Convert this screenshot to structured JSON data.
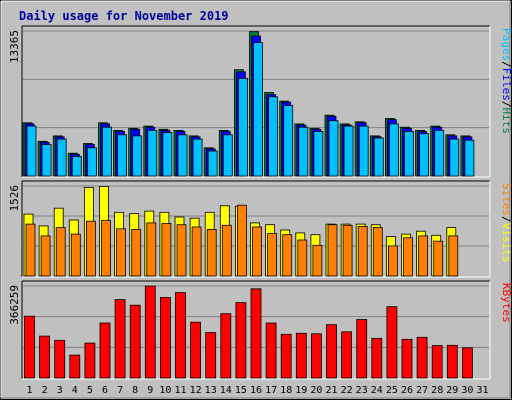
{
  "chart_data": {
    "type": "bar",
    "title": "Daily usage for November 2019",
    "categories": [
      "1",
      "2",
      "3",
      "4",
      "5",
      "6",
      "7",
      "8",
      "9",
      "10",
      "11",
      "12",
      "13",
      "14",
      "15",
      "16",
      "17",
      "18",
      "19",
      "20",
      "21",
      "22",
      "23",
      "24",
      "25",
      "26",
      "27",
      "28",
      "29",
      "30",
      "31"
    ],
    "weekend_days": [
      "2",
      "3",
      "9",
      "16",
      "23",
      "24",
      "30",
      "31"
    ],
    "panels": [
      {
        "id": "hits-files-pages",
        "max_label": "13365",
        "ymax": 13365,
        "labels": [
          {
            "text": "Pages",
            "color": "#00c0ff"
          },
          {
            "text": "/",
            "color": "#000000"
          },
          {
            "text": "Files",
            "color": "#0000ff"
          },
          {
            "text": "/",
            "color": "#000000"
          },
          {
            "text": "Hits",
            "color": "#008040"
          }
        ],
        "series": [
          {
            "name": "Hits",
            "color": "#008040",
            "values": [
              4900,
              3200,
              3700,
              2100,
              3000,
              4900,
              4200,
              4400,
              4600,
              4300,
              4200,
              3700,
              2600,
              4200,
              9800,
              13300,
              7700,
              6900,
              4800,
              4400,
              5600,
              4800,
              5000,
              3700,
              5300,
              4500,
              4200,
              4600,
              3800,
              3700,
              0
            ]
          },
          {
            "name": "Files",
            "color": "#0000ff",
            "values": [
              4800,
              3100,
              3600,
              2000,
              2900,
              4800,
              4100,
              4300,
              4500,
              4200,
              4100,
              3600,
              2500,
              4100,
              9600,
              12900,
              7500,
              6800,
              4700,
              4300,
              5500,
              4700,
              4900,
              3600,
              5200,
              4400,
              4100,
              4500,
              3700,
              3600,
              0
            ]
          },
          {
            "name": "Pages",
            "color": "#00c0ff",
            "values": [
              4600,
              2900,
              3400,
              1800,
              2600,
              4500,
              3800,
              3700,
              4200,
              4000,
              3800,
              3400,
              2300,
              3800,
              9000,
              12300,
              7300,
              6500,
              4500,
              4100,
              5100,
              4600,
              4600,
              3500,
              4800,
              4100,
              3900,
              4200,
              3400,
              3300,
              0
            ]
          }
        ]
      },
      {
        "id": "visits-sites",
        "max_label": "1526",
        "ymax": 1526,
        "labels": [
          {
            "text": "Sites",
            "color": "#ff8000"
          },
          {
            "text": "/",
            "color": "#000000"
          },
          {
            "text": "Visits",
            "color": "#ffff00"
          }
        ],
        "series": [
          {
            "name": "Visits",
            "color": "#ffff00",
            "values": [
              1050,
              850,
              1150,
              950,
              1500,
              1520,
              1080,
              1060,
              1100,
              1080,
              1000,
              980,
              1080,
              1190,
              1180,
              900,
              870,
              780,
              730,
              700,
              880,
              880,
              880,
              870,
              670,
              710,
              760,
              690,
              820,
              0,
              0
            ]
          },
          {
            "name": "Sites",
            "color": "#ff8000",
            "values": [
              880,
              680,
              820,
              710,
              930,
              940,
              800,
              790,
              900,
              890,
              870,
              830,
              790,
              860,
              1200,
              830,
              720,
              700,
              610,
              520,
              870,
              860,
              840,
              820,
              510,
              650,
              680,
              590,
              680,
              0,
              0
            ]
          }
        ]
      },
      {
        "id": "kbytes",
        "max_label": "366259",
        "ymax": 366259,
        "labels": [
          {
            "text": "KBytes",
            "color": "#ff0000"
          }
        ],
        "series": [
          {
            "name": "KBytes",
            "color": "#ff0000",
            "values": [
              246000,
              167000,
              150000,
              91000,
              139000,
              219000,
              312000,
              290000,
              366000,
              321000,
              340000,
              222000,
              181000,
              256000,
              300000,
              355000,
              219000,
              174000,
              178000,
              176000,
              212000,
              184000,
              233000,
              158000,
              284000,
              154000,
              162000,
              129000,
              130000,
              120000,
              0
            ]
          }
        ]
      }
    ]
  }
}
